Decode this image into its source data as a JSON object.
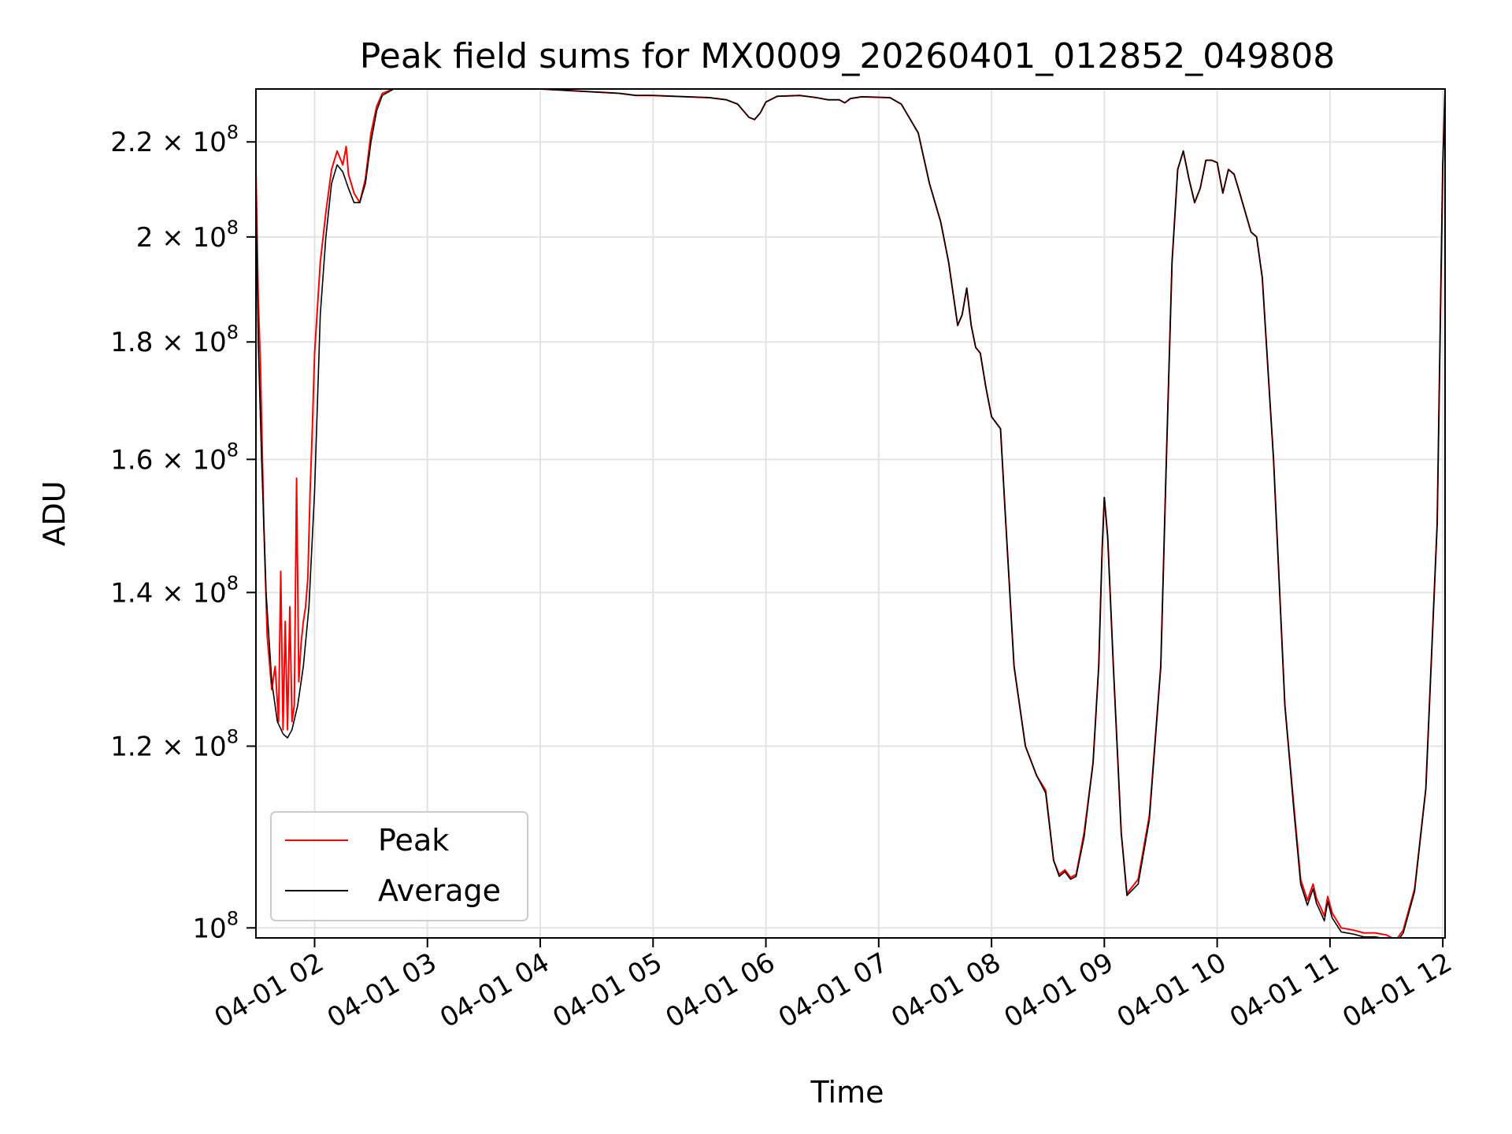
{
  "chart_data": {
    "type": "line",
    "title": "Peak field sums for MX0009_20260401_012852_049808",
    "xlabel": "Time",
    "ylabel": "ADU",
    "yscale": "log",
    "grid": true,
    "legend_position": "lower-left",
    "x_unit": "hours since 2026-04-01 00:00",
    "xlim": [
      1.48,
      12.02
    ],
    "ylim": [
      99000000,
      232000000
    ],
    "x_ticks": [
      {
        "value": 2,
        "label": "04-01 02"
      },
      {
        "value": 3,
        "label": "04-01 03"
      },
      {
        "value": 4,
        "label": "04-01 04"
      },
      {
        "value": 5,
        "label": "04-01 05"
      },
      {
        "value": 6,
        "label": "04-01 06"
      },
      {
        "value": 7,
        "label": "04-01 07"
      },
      {
        "value": 8,
        "label": "04-01 08"
      },
      {
        "value": 9,
        "label": "04-01 09"
      },
      {
        "value": 10,
        "label": "04-01 10"
      },
      {
        "value": 11,
        "label": "04-01 11"
      },
      {
        "value": 12,
        "label": "04-01 12"
      }
    ],
    "y_ticks": [
      {
        "value": 100000000,
        "mantissa": "",
        "exponent": "8"
      },
      {
        "value": 120000000,
        "mantissa": "1.2",
        "exponent": "8"
      },
      {
        "value": 140000000,
        "mantissa": "1.4",
        "exponent": "8"
      },
      {
        "value": 160000000,
        "mantissa": "1.6",
        "exponent": "8"
      },
      {
        "value": 180000000,
        "mantissa": "1.8",
        "exponent": "8"
      },
      {
        "value": 200000000,
        "mantissa": "2",
        "exponent": "8"
      },
      {
        "value": 220000000,
        "mantissa": "2.2",
        "exponent": "8"
      }
    ],
    "series": [
      {
        "name": "Peak",
        "color": "#ff0000",
        "points": [
          [
            1.48,
            214000000
          ],
          [
            1.5,
            188000000
          ],
          [
            1.52,
            176000000
          ],
          [
            1.55,
            150000000
          ],
          [
            1.58,
            134000000
          ],
          [
            1.62,
            127000000
          ],
          [
            1.65,
            130000000
          ],
          [
            1.68,
            123000000
          ],
          [
            1.7,
            143000000
          ],
          [
            1.72,
            122000000
          ],
          [
            1.74,
            136000000
          ],
          [
            1.76,
            122000000
          ],
          [
            1.78,
            138000000
          ],
          [
            1.8,
            123000000
          ],
          [
            1.82,
            125000000
          ],
          [
            1.84,
            157000000
          ],
          [
            1.86,
            128000000
          ],
          [
            1.88,
            133000000
          ],
          [
            1.9,
            136000000
          ],
          [
            1.92,
            138000000
          ],
          [
            1.94,
            142000000
          ],
          [
            1.96,
            155000000
          ],
          [
            1.98,
            165000000
          ],
          [
            2.0,
            178000000
          ],
          [
            2.05,
            195000000
          ],
          [
            2.1,
            205000000
          ],
          [
            2.15,
            214000000
          ],
          [
            2.2,
            218000000
          ],
          [
            2.25,
            215000000
          ],
          [
            2.28,
            219000000
          ],
          [
            2.3,
            213000000
          ],
          [
            2.35,
            209000000
          ],
          [
            2.4,
            207000000
          ],
          [
            2.45,
            212000000
          ],
          [
            2.5,
            222000000
          ],
          [
            2.55,
            228000000
          ],
          [
            2.6,
            231000000
          ],
          [
            2.7,
            232000000
          ],
          [
            3.0,
            232000000
          ],
          [
            3.5,
            232000000
          ],
          [
            4.0,
            232000000
          ],
          [
            4.7,
            231000000
          ],
          [
            4.85,
            230500000
          ],
          [
            5.0,
            230500000
          ],
          [
            5.5,
            230000000
          ],
          [
            5.65,
            229500000
          ],
          [
            5.75,
            228500000
          ],
          [
            5.8,
            227000000
          ],
          [
            5.85,
            225500000
          ],
          [
            5.9,
            225000000
          ],
          [
            5.95,
            226500000
          ],
          [
            6.0,
            229000000
          ],
          [
            6.1,
            230300000
          ],
          [
            6.3,
            230500000
          ],
          [
            6.45,
            230000000
          ],
          [
            6.55,
            229500000
          ],
          [
            6.65,
            229500000
          ],
          [
            6.7,
            228800000
          ],
          [
            6.75,
            229800000
          ],
          [
            6.85,
            230200000
          ],
          [
            7.1,
            230000000
          ],
          [
            7.2,
            228500000
          ],
          [
            7.35,
            222000000
          ],
          [
            7.45,
            211000000
          ],
          [
            7.55,
            203000000
          ],
          [
            7.62,
            195000000
          ],
          [
            7.7,
            183000000
          ],
          [
            7.74,
            185000000
          ],
          [
            7.78,
            190000000
          ],
          [
            7.82,
            183000000
          ],
          [
            7.86,
            179000000
          ],
          [
            7.9,
            178000000
          ],
          [
            7.95,
            172000000
          ],
          [
            8.0,
            167000000
          ],
          [
            8.08,
            165000000
          ],
          [
            8.12,
            152000000
          ],
          [
            8.2,
            130000000
          ],
          [
            8.3,
            120000000
          ],
          [
            8.4,
            116500000
          ],
          [
            8.48,
            114800000
          ],
          [
            8.55,
            107000000
          ],
          [
            8.6,
            105500000
          ],
          [
            8.65,
            106000000
          ],
          [
            8.7,
            105200000
          ],
          [
            8.75,
            105500000
          ],
          [
            8.82,
            110000000
          ],
          [
            8.9,
            118000000
          ],
          [
            8.95,
            130000000
          ],
          [
            8.98,
            146000000
          ],
          [
            9.0,
            154000000
          ],
          [
            9.03,
            148000000
          ],
          [
            9.08,
            130000000
          ],
          [
            9.15,
            110000000
          ],
          [
            9.2,
            103500000
          ],
          [
            9.3,
            105000000
          ],
          [
            9.4,
            112000000
          ],
          [
            9.5,
            130000000
          ],
          [
            9.55,
            160000000
          ],
          [
            9.6,
            195000000
          ],
          [
            9.65,
            214000000
          ],
          [
            9.7,
            218000000
          ],
          [
            9.75,
            212000000
          ],
          [
            9.8,
            207000000
          ],
          [
            9.85,
            210000000
          ],
          [
            9.9,
            216000000
          ],
          [
            9.95,
            216000000
          ],
          [
            10.0,
            215500000
          ],
          [
            10.05,
            209000000
          ],
          [
            10.1,
            214000000
          ],
          [
            10.15,
            213000000
          ],
          [
            10.2,
            209000000
          ],
          [
            10.3,
            201000000
          ],
          [
            10.35,
            200000000
          ],
          [
            10.4,
            192000000
          ],
          [
            10.5,
            160000000
          ],
          [
            10.6,
            125000000
          ],
          [
            10.68,
            113000000
          ],
          [
            10.74,
            105000000
          ],
          [
            10.8,
            102800000
          ],
          [
            10.85,
            104500000
          ],
          [
            10.88,
            103000000
          ],
          [
            10.92,
            102000000
          ],
          [
            10.95,
            101200000
          ],
          [
            10.98,
            103200000
          ],
          [
            11.02,
            101500000
          ],
          [
            11.1,
            100000000
          ],
          [
            11.2,
            99800000
          ],
          [
            11.3,
            99500000
          ],
          [
            11.4,
            99500000
          ],
          [
            11.5,
            99300000
          ],
          [
            11.55,
            99000000
          ],
          [
            11.6,
            99000000
          ],
          [
            11.65,
            99800000
          ],
          [
            11.75,
            104000000
          ],
          [
            11.85,
            115000000
          ],
          [
            11.95,
            150000000
          ],
          [
            12.0,
            215000000
          ],
          [
            12.02,
            232000000
          ]
        ]
      },
      {
        "name": "Average",
        "color": "#000000",
        "points": [
          [
            1.48,
            210000000
          ],
          [
            1.5,
            180000000
          ],
          [
            1.53,
            160000000
          ],
          [
            1.57,
            140000000
          ],
          [
            1.62,
            128000000
          ],
          [
            1.67,
            123000000
          ],
          [
            1.72,
            121500000
          ],
          [
            1.76,
            121000000
          ],
          [
            1.8,
            122000000
          ],
          [
            1.85,
            125000000
          ],
          [
            1.9,
            130000000
          ],
          [
            1.95,
            138000000
          ],
          [
            2.0,
            155000000
          ],
          [
            2.05,
            185000000
          ],
          [
            2.1,
            200000000
          ],
          [
            2.15,
            211000000
          ],
          [
            2.2,
            215000000
          ],
          [
            2.25,
            213500000
          ],
          [
            2.3,
            210000000
          ],
          [
            2.35,
            207000000
          ],
          [
            2.4,
            207000000
          ],
          [
            2.45,
            211000000
          ],
          [
            2.5,
            220000000
          ],
          [
            2.55,
            227000000
          ],
          [
            2.6,
            230500000
          ],
          [
            2.7,
            232000000
          ],
          [
            3.0,
            232000000
          ],
          [
            3.5,
            232000000
          ],
          [
            4.0,
            232000000
          ],
          [
            4.7,
            231000000
          ],
          [
            4.85,
            230500000
          ],
          [
            5.0,
            230500000
          ],
          [
            5.5,
            230000000
          ],
          [
            5.65,
            229500000
          ],
          [
            5.75,
            228500000
          ],
          [
            5.8,
            227000000
          ],
          [
            5.85,
            225500000
          ],
          [
            5.9,
            225000000
          ],
          [
            5.95,
            226500000
          ],
          [
            6.0,
            229000000
          ],
          [
            6.1,
            230300000
          ],
          [
            6.3,
            230500000
          ],
          [
            6.45,
            230000000
          ],
          [
            6.55,
            229500000
          ],
          [
            6.65,
            229500000
          ],
          [
            6.7,
            228800000
          ],
          [
            6.75,
            229800000
          ],
          [
            6.85,
            230200000
          ],
          [
            7.1,
            230000000
          ],
          [
            7.2,
            228500000
          ],
          [
            7.35,
            222000000
          ],
          [
            7.45,
            211000000
          ],
          [
            7.55,
            203000000
          ],
          [
            7.62,
            195000000
          ],
          [
            7.7,
            183000000
          ],
          [
            7.74,
            185000000
          ],
          [
            7.78,
            190000000
          ],
          [
            7.82,
            183000000
          ],
          [
            7.86,
            179000000
          ],
          [
            7.9,
            178000000
          ],
          [
            7.95,
            172000000
          ],
          [
            8.0,
            167000000
          ],
          [
            8.08,
            165000000
          ],
          [
            8.12,
            152000000
          ],
          [
            8.2,
            130000000
          ],
          [
            8.3,
            120000000
          ],
          [
            8.4,
            116500000
          ],
          [
            8.48,
            114500000
          ],
          [
            8.55,
            107000000
          ],
          [
            8.6,
            105300000
          ],
          [
            8.65,
            105800000
          ],
          [
            8.7,
            105000000
          ],
          [
            8.75,
            105300000
          ],
          [
            8.82,
            109500000
          ],
          [
            8.9,
            118000000
          ],
          [
            8.95,
            130000000
          ],
          [
            8.98,
            146000000
          ],
          [
            9.0,
            154000000
          ],
          [
            9.03,
            148000000
          ],
          [
            9.08,
            130000000
          ],
          [
            9.15,
            110000000
          ],
          [
            9.2,
            103300000
          ],
          [
            9.3,
            104500000
          ],
          [
            9.4,
            111500000
          ],
          [
            9.5,
            130000000
          ],
          [
            9.55,
            160000000
          ],
          [
            9.6,
            195000000
          ],
          [
            9.65,
            214000000
          ],
          [
            9.7,
            218000000
          ],
          [
            9.75,
            212000000
          ],
          [
            9.8,
            207000000
          ],
          [
            9.85,
            210000000
          ],
          [
            9.9,
            216000000
          ],
          [
            9.95,
            216000000
          ],
          [
            10.0,
            215500000
          ],
          [
            10.05,
            209000000
          ],
          [
            10.1,
            214000000
          ],
          [
            10.15,
            213000000
          ],
          [
            10.2,
            209000000
          ],
          [
            10.3,
            201000000
          ],
          [
            10.35,
            200000000
          ],
          [
            10.4,
            192000000
          ],
          [
            10.5,
            160000000
          ],
          [
            10.6,
            125000000
          ],
          [
            10.68,
            112500000
          ],
          [
            10.74,
            104500000
          ],
          [
            10.8,
            102300000
          ],
          [
            10.85,
            104000000
          ],
          [
            10.88,
            102500000
          ],
          [
            10.92,
            101500000
          ],
          [
            10.95,
            100700000
          ],
          [
            10.98,
            102700000
          ],
          [
            11.02,
            101000000
          ],
          [
            11.1,
            99600000
          ],
          [
            11.2,
            99400000
          ],
          [
            11.3,
            99100000
          ],
          [
            11.4,
            99100000
          ],
          [
            11.5,
            98900000
          ],
          [
            11.55,
            98700000
          ],
          [
            11.6,
            98700000
          ],
          [
            11.65,
            99500000
          ],
          [
            11.75,
            103700000
          ],
          [
            11.85,
            115000000
          ],
          [
            11.95,
            150000000
          ],
          [
            12.0,
            215000000
          ],
          [
            12.02,
            232000000
          ]
        ]
      }
    ]
  }
}
